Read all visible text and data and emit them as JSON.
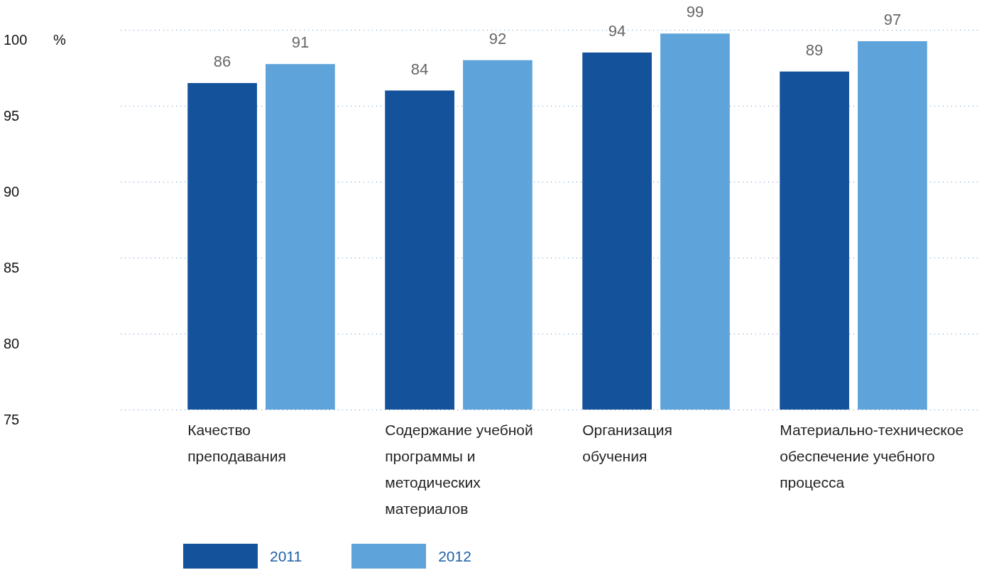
{
  "chart_data": {
    "type": "bar",
    "ylabel": "%",
    "categories": [
      "Качество преподавания",
      "Содержание учебной программы и методических материалов",
      "Организация обучения",
      "Материально-техническое обеспечение учебного процесса"
    ],
    "series": [
      {
        "name": "2011",
        "color": "#15529c",
        "values": [
          86,
          84,
          94,
          89
        ]
      },
      {
        "name": "2012",
        "color": "#5ea4da",
        "values": [
          91,
          92,
          99,
          97
        ]
      }
    ],
    "ylim": [
      0,
      100
    ],
    "yticks": [
      {
        "value": 0,
        "label": null
      },
      {
        "value": 20,
        "label": null
      },
      {
        "value": 40,
        "label": null
      },
      {
        "value": 60,
        "label": null
      },
      {
        "value": 80,
        "label": null
      },
      {
        "value": 100,
        "label": null
      }
    ],
    "annotations": [
      "75",
      "80",
      "85",
      "90",
      "95",
      "100"
    ],
    "grid": "y",
    "legend": "bottom",
    "data_labels": true
  }
}
